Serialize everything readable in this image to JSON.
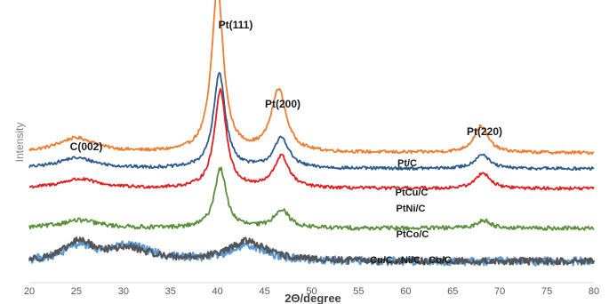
{
  "chart_data": {
    "type": "line",
    "title": "",
    "xlabel": "2Θ/degree",
    "ylabel": "Intensity",
    "xlim": [
      20,
      80
    ],
    "ylim": [
      0,
      1
    ],
    "x_ticks": [
      "20",
      "25",
      "30",
      "35",
      "40",
      "45",
      "50",
      "55",
      "60",
      "65",
      "70",
      "75",
      "80"
    ],
    "grid": false,
    "legend": "none",
    "series": [
      {
        "name": "Pt/C",
        "color": "#ED7D31",
        "baseline": 0.49,
        "peaks": [
          [
            25,
            0.055,
            2.5
          ],
          [
            40,
            0.62,
            0.75
          ],
          [
            46.5,
            0.235,
            0.95
          ],
          [
            68,
            0.1,
            0.9
          ]
        ],
        "noise": 0.006
      },
      {
        "name": "PtCu/C",
        "color": "#2E5B8E",
        "baseline": 0.43,
        "peaks": [
          [
            25,
            0.04,
            2.5
          ],
          [
            40.2,
            0.36,
            0.75
          ],
          [
            46.8,
            0.115,
            0.95
          ],
          [
            68.1,
            0.055,
            0.9
          ]
        ],
        "noise": 0.006
      },
      {
        "name": "PtNi/C",
        "color": "#E01E1E",
        "baseline": 0.355,
        "peaks": [
          [
            25.3,
            0.035,
            2.5
          ],
          [
            40.3,
            0.37,
            0.75
          ],
          [
            46.8,
            0.12,
            0.95
          ],
          [
            68.2,
            0.06,
            0.9
          ]
        ],
        "noise": 0.006
      },
      {
        "name": "PtCo/C",
        "color": "#5A8F3A",
        "baseline": 0.205,
        "peaks": [
          [
            25.3,
            0.03,
            2.5
          ],
          [
            40.3,
            0.225,
            0.75
          ],
          [
            46.8,
            0.07,
            0.95
          ],
          [
            68.3,
            0.03,
            0.9
          ]
        ],
        "noise": 0.008
      },
      {
        "name": "Cu/C",
        "color": "#5B9BD5",
        "baseline": 0.08,
        "peaks": [
          [
            25.3,
            0.055,
            1.8
          ],
          [
            30.5,
            0.055,
            2.8
          ],
          [
            43.2,
            0.06,
            2.4
          ]
        ],
        "noise": 0.016
      },
      {
        "name": "Co/C",
        "color": "#555555",
        "baseline": 0.08,
        "peaks": [
          [
            25.3,
            0.07,
            1.8
          ],
          [
            30.5,
            0.045,
            2.8
          ],
          [
            43.2,
            0.075,
            2.4
          ]
        ],
        "noise": 0.013
      }
    ],
    "peak_labels": [
      "C(002)",
      "Pt(111)",
      "Pt(200)",
      "Pt(220)"
    ],
    "series_labels": [
      "Pt/C",
      "PtCu/C",
      "PtNi/C",
      "PtCo/C",
      "Cu/C , Ni/C , Co/C"
    ]
  }
}
